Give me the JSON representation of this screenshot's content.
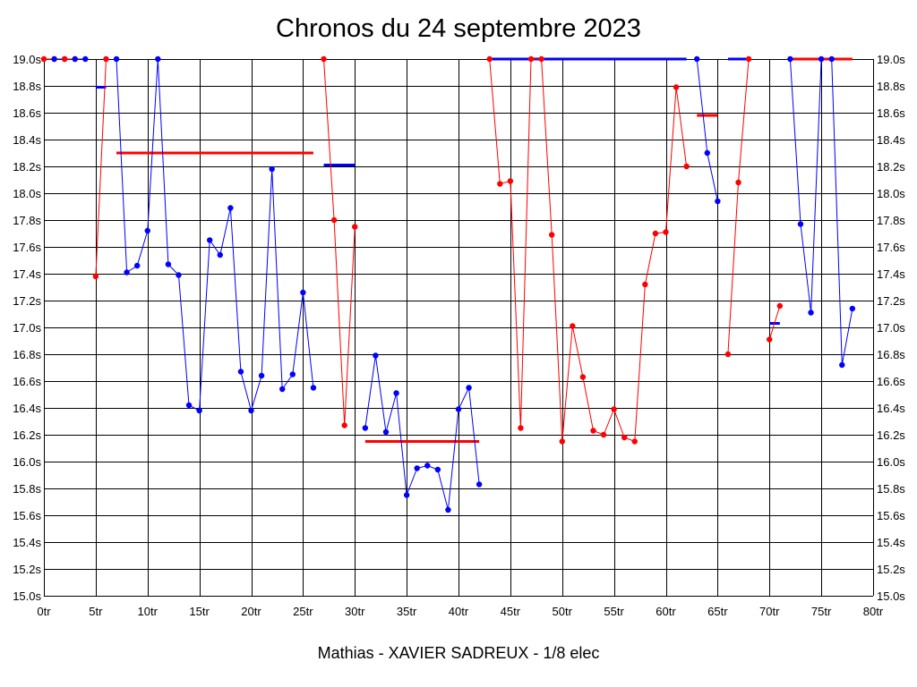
{
  "chart_data": {
    "type": "line",
    "title": "Chronos du 24 septembre 2023",
    "footer": "Mathias - XAVIER SADREUX - 1/8 elec",
    "xlim": [
      0,
      80
    ],
    "ylim": [
      15.0,
      19.0
    ],
    "x_ticks": [
      "0tr",
      "5tr",
      "10tr",
      "15tr",
      "20tr",
      "25tr",
      "30tr",
      "35tr",
      "40tr",
      "45tr",
      "50tr",
      "55tr",
      "60tr",
      "65tr",
      "70tr",
      "75tr",
      "80tr"
    ],
    "y_ticks": [
      "19.0s",
      "18.8s",
      "18.6s",
      "18.4s",
      "18.2s",
      "18.0s",
      "17.8s",
      "17.6s",
      "17.4s",
      "17.2s",
      "17.0s",
      "16.8s",
      "16.6s",
      "16.4s",
      "16.2s",
      "16.0s",
      "15.8s",
      "15.6s",
      "15.4s",
      "15.2s",
      "15.0s"
    ],
    "grid": true,
    "colors": {
      "red": "#ff0000",
      "blue": "#0000ff",
      "grid": "#000000"
    },
    "series": [
      {
        "color": "#ff0000",
        "x": [
          0,
          1
        ],
        "y": [
          19.0,
          19.0
        ]
      },
      {
        "color": "#0000ff",
        "x": [
          1,
          2
        ],
        "y": [
          19.0,
          19.0
        ]
      },
      {
        "color": "#ff0000",
        "x": [
          2,
          3
        ],
        "y": [
          19.0,
          19.0
        ]
      },
      {
        "color": "#0000ff",
        "x": [
          3,
          4
        ],
        "y": [
          19.0,
          19.0
        ]
      },
      {
        "color": "#ff0000",
        "x": [
          5,
          6
        ],
        "y": [
          17.38,
          19.0
        ]
      },
      {
        "color": "#0000ff",
        "x": [
          7,
          8,
          9,
          10,
          11,
          12,
          13,
          14,
          15,
          16,
          17,
          18,
          19,
          20,
          21,
          22,
          23,
          24,
          25,
          26
        ],
        "y": [
          19.0,
          17.41,
          17.46,
          17.72,
          19.0,
          17.47,
          17.39,
          16.42,
          16.38,
          17.65,
          17.54,
          17.89,
          16.67,
          16.38,
          16.64,
          18.18,
          16.54,
          16.65,
          17.26,
          16.55
        ]
      },
      {
        "color": "#ff0000",
        "x": [
          27,
          28,
          29,
          30
        ],
        "y": [
          19.0,
          17.8,
          16.27,
          17.75
        ]
      },
      {
        "color": "#0000ff",
        "x": [
          31,
          32,
          33,
          34,
          35,
          36,
          37,
          38,
          39,
          40,
          41,
          42
        ],
        "y": [
          16.25,
          16.79,
          16.22,
          16.51,
          15.75,
          15.95,
          15.97,
          15.94,
          15.64,
          16.39,
          16.55,
          15.83
        ]
      },
      {
        "color": "#ff0000",
        "x": [
          43,
          44,
          45,
          46,
          47,
          48,
          49,
          50,
          51,
          52,
          53,
          54,
          55,
          56,
          57,
          58,
          59,
          60,
          61,
          62
        ],
        "y": [
          19.0,
          18.07,
          18.09,
          16.25,
          19.0,
          19.0,
          17.69,
          16.15,
          17.01,
          16.63,
          16.23,
          16.2,
          16.39,
          16.18,
          16.15,
          17.32,
          17.7,
          17.71,
          18.79,
          18.2
        ]
      },
      {
        "color": "#0000ff",
        "x": [
          63,
          64,
          65
        ],
        "y": [
          19.0,
          18.3,
          17.94
        ]
      },
      {
        "color": "#ff0000",
        "x": [
          66,
          67,
          68
        ],
        "y": [
          16.8,
          18.08,
          19.0
        ]
      },
      {
        "color": "#ff0000",
        "x": [
          70,
          71
        ],
        "y": [
          16.91,
          17.16
        ]
      },
      {
        "color": "#0000ff",
        "x": [
          72,
          73,
          74,
          75,
          76,
          77,
          78
        ],
        "y": [
          19.0,
          17.77,
          17.11,
          19.0,
          19.0,
          16.72,
          17.14
        ]
      },
      {
        "color": "#ff0000",
        "x": [
          72,
          73,
          74,
          75,
          76,
          77,
          78
        ],
        "y": [
          19.0,
          19.0,
          19.0,
          19.0,
          19.0,
          19.0,
          19.0
        ],
        "markers": false
      }
    ],
    "averages": [
      {
        "color": "#0000ff",
        "x": [
          5,
          6
        ],
        "y": 18.79
      },
      {
        "color": "#ff0000",
        "x": [
          7,
          26
        ],
        "y": 18.3
      },
      {
        "color": "#0000ff",
        "x": [
          27,
          30
        ],
        "y": 18.21
      },
      {
        "color": "#ff0000",
        "x": [
          31,
          42
        ],
        "y": 16.15
      },
      {
        "color": "#0000ff",
        "x": [
          43,
          62
        ],
        "y": 19.0
      },
      {
        "color": "#ff0000",
        "x": [
          63,
          65
        ],
        "y": 18.58
      },
      {
        "color": "#0000ff",
        "x": [
          66,
          68
        ],
        "y": 19.0
      },
      {
        "color": "#0000ff",
        "x": [
          70,
          71
        ],
        "y": 17.03
      }
    ]
  }
}
